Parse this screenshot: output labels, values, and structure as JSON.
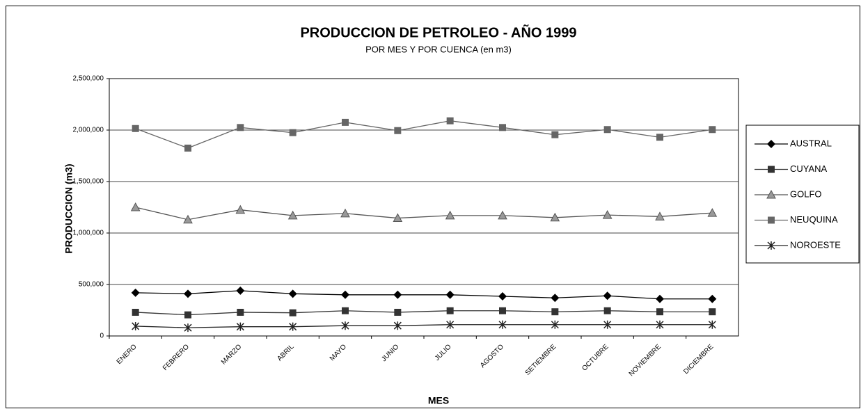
{
  "chart_data": {
    "type": "line",
    "title": "PRODUCCION DE PETROLEO - AÑO 1999",
    "subtitle": "POR MES Y POR CUENCA (en m3)",
    "x_label": "MES",
    "y_label": "PRODUCCION (m3)",
    "categories": [
      "ENERO",
      "FEBRERO",
      "MARZO",
      "ABRIL",
      "MAYO",
      "JUNIO",
      "JULIO",
      "AGOSTO",
      "SETIEMBRE",
      "OCTUBRE",
      "NOVIEMBRE",
      "DICIEMBRE"
    ],
    "series": [
      {
        "name": "AUSTRAL",
        "color": "#000000",
        "marker": "diamond",
        "values": [
          420000,
          410000,
          440000,
          410000,
          400000,
          400000,
          400000,
          385000,
          370000,
          390000,
          360000,
          360000
        ]
      },
      {
        "name": "CUYANA",
        "color": "#333333",
        "marker": "square",
        "values": [
          230000,
          205000,
          230000,
          225000,
          245000,
          230000,
          245000,
          245000,
          235000,
          245000,
          235000,
          235000
        ]
      },
      {
        "name": "GOLFO",
        "color": "#555555",
        "marker": "triangle",
        "values": [
          1250000,
          1130000,
          1225000,
          1170000,
          1190000,
          1145000,
          1170000,
          1170000,
          1150000,
          1175000,
          1160000,
          1195000
        ]
      },
      {
        "name": "NEUQUINA",
        "color": "#666666",
        "marker": "square",
        "values": [
          2015000,
          1825000,
          2025000,
          1975000,
          2075000,
          1995000,
          2090000,
          2025000,
          1955000,
          2005000,
          1930000,
          2005000
        ]
      },
      {
        "name": "NOROESTE",
        "color": "#222222",
        "marker": "asterisk",
        "values": [
          95000,
          80000,
          90000,
          90000,
          100000,
          100000,
          110000,
          110000,
          110000,
          110000,
          110000,
          110000
        ]
      }
    ],
    "ylim": [
      0,
      2500000
    ],
    "yticks": [
      0,
      {
        "value": 500000,
        "label": "500,000"
      },
      {
        "value": 1000000,
        "label": "1,000,000"
      },
      {
        "value": 1500000,
        "label": "1,500,000"
      },
      {
        "value": 2000000,
        "label": "2,000,000"
      },
      {
        "value": 2500000,
        "label": "2,500,000"
      }
    ],
    "grid": true,
    "legend": "right"
  }
}
